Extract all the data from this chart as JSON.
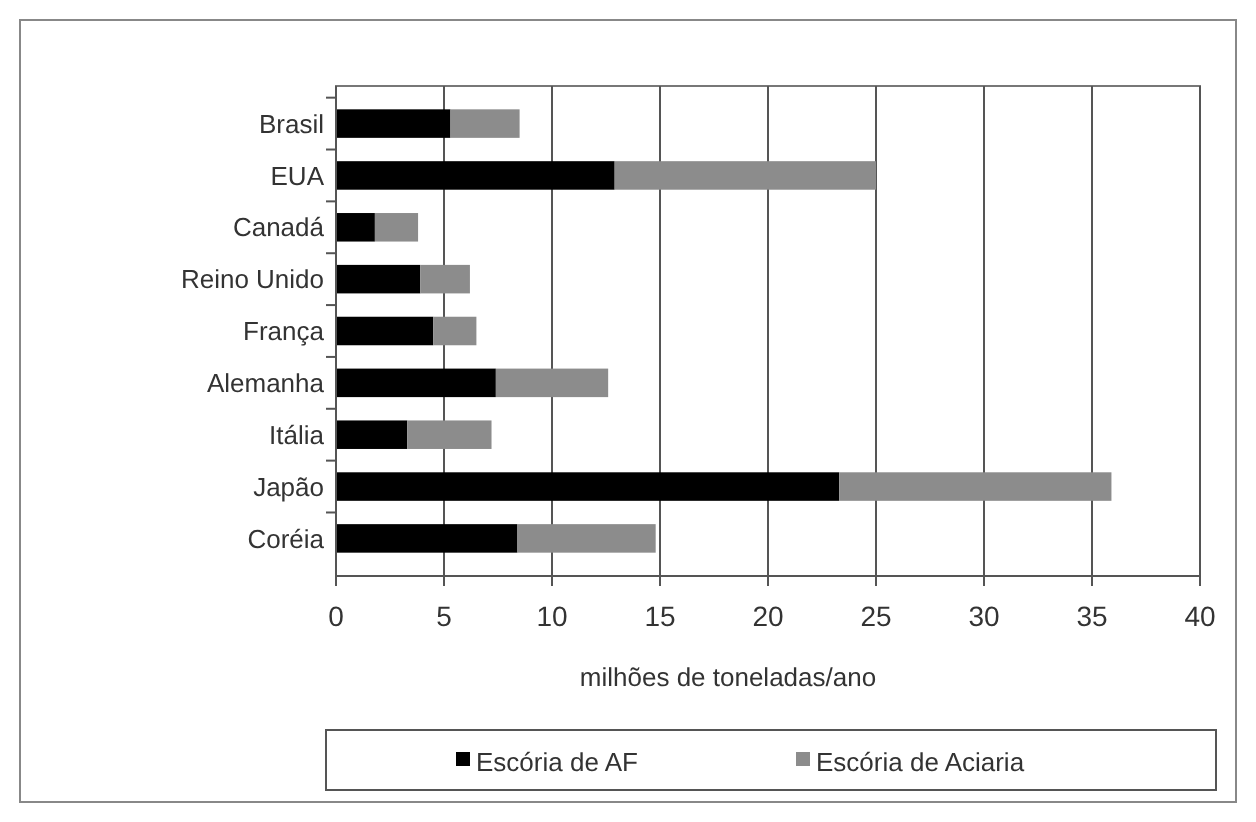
{
  "chart_data": {
    "type": "bar",
    "orientation": "horizontal",
    "stacked": true,
    "categories": [
      "Brasil",
      "EUA",
      "Canadá",
      "Reino Unido",
      "França",
      "Alemanha",
      "Itália",
      "Japão",
      "Coréia"
    ],
    "series": [
      {
        "name": "Escória de AF",
        "color": "#000000",
        "values": [
          5.3,
          12.9,
          1.8,
          3.9,
          4.5,
          7.4,
          3.3,
          23.3,
          8.4
        ]
      },
      {
        "name": "Escória de Aciaria",
        "color": "#8c8c8c",
        "values": [
          3.2,
          12.1,
          2.0,
          2.3,
          2.0,
          5.2,
          3.9,
          12.6,
          6.4
        ]
      }
    ],
    "xlim": [
      0,
      40
    ],
    "xticks": [
      0,
      5,
      10,
      15,
      20,
      25,
      30,
      35,
      40
    ],
    "xlabel": "milhões de toneladas/ano",
    "grid": "x",
    "legend": "bottom"
  }
}
